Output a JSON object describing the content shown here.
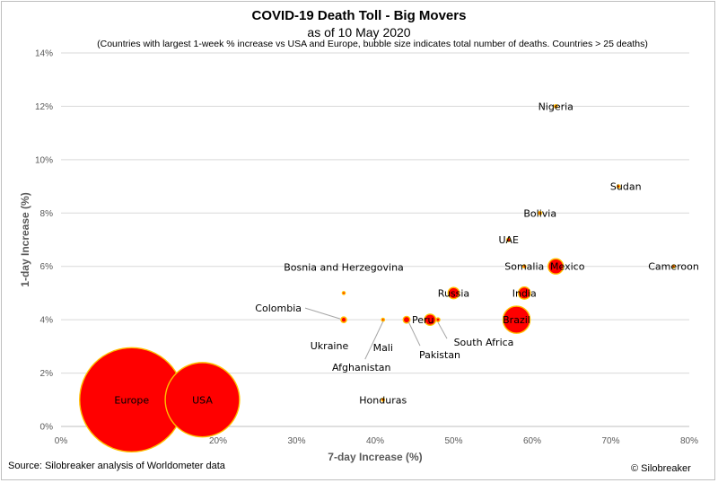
{
  "title": "COVID-19 Death Toll - Big Movers",
  "subtitle": "as of 10 May 2020",
  "note": "(Countries with largest 1-week % increase vs USA and Europe, bubble size indicates total number of deaths. Countries > 25 deaths)",
  "source": "Source: Silobreaker analysis of Worldometer data",
  "copyright": "© Silobreaker",
  "chart_data": {
    "type": "scatter",
    "title": "COVID-19 Death Toll - Big Movers",
    "xlabel": "7-day Increase (%)",
    "ylabel": "1-day Increase (%)",
    "xlim": [
      0,
      80
    ],
    "ylim": [
      0,
      14
    ],
    "x_ticks": [
      "0%",
      "10%",
      "20%",
      "30%",
      "40%",
      "50%",
      "60%",
      "70%",
      "80%"
    ],
    "y_ticks": [
      "0%",
      "2%",
      "4%",
      "6%",
      "8%",
      "10%",
      "12%",
      "14%"
    ],
    "grid": "horizontal",
    "bubble_color": "#ff0000",
    "bubble_edge": "#ffc000",
    "points": [
      {
        "label": "Europe",
        "x": 9,
        "y": 1,
        "size": 157000
      },
      {
        "label": "USA",
        "x": 18,
        "y": 1,
        "size": 80000
      },
      {
        "label": "Brazil",
        "x": 58,
        "y": 4,
        "size": 10600
      },
      {
        "label": "Mexico",
        "x": 63,
        "y": 6,
        "size": 3350
      },
      {
        "label": "India",
        "x": 59,
        "y": 5,
        "size": 2100
      },
      {
        "label": "Russia",
        "x": 50,
        "y": 5,
        "size": 1800
      },
      {
        "label": "Peru",
        "x": 47,
        "y": 4,
        "size": 1800
      },
      {
        "label": "Pakistan",
        "x": 44,
        "y": 4,
        "size": 650
      },
      {
        "label": "Colombia",
        "x": 36,
        "y": 4,
        "size": 450
      },
      {
        "label": "Ukraine",
        "x": 36,
        "y": 4,
        "size": 400
      },
      {
        "label": "South Africa",
        "x": 48,
        "y": 4,
        "size": 200
      },
      {
        "label": "Bosnia and Herzegovina",
        "x": 36,
        "y": 5,
        "size": 60
      },
      {
        "label": "Afghanistan",
        "x": 41,
        "y": 4,
        "size": 110
      },
      {
        "label": "Mali",
        "x": 41,
        "y": 4,
        "size": 40
      },
      {
        "label": "Honduras",
        "x": 41,
        "y": 1,
        "size": 60
      },
      {
        "label": "Nigeria",
        "x": 63,
        "y": 12,
        "size": 130
      },
      {
        "label": "Sudan",
        "x": 71,
        "y": 9,
        "size": 50
      },
      {
        "label": "Bolivia",
        "x": 61,
        "y": 8,
        "size": 140
      },
      {
        "label": "UAE",
        "x": 57,
        "y": 7,
        "size": 190
      },
      {
        "label": "Somalia",
        "x": 59,
        "y": 6,
        "size": 50
      },
      {
        "label": "Cameroon",
        "x": 78,
        "y": 6,
        "size": 60
      }
    ]
  }
}
